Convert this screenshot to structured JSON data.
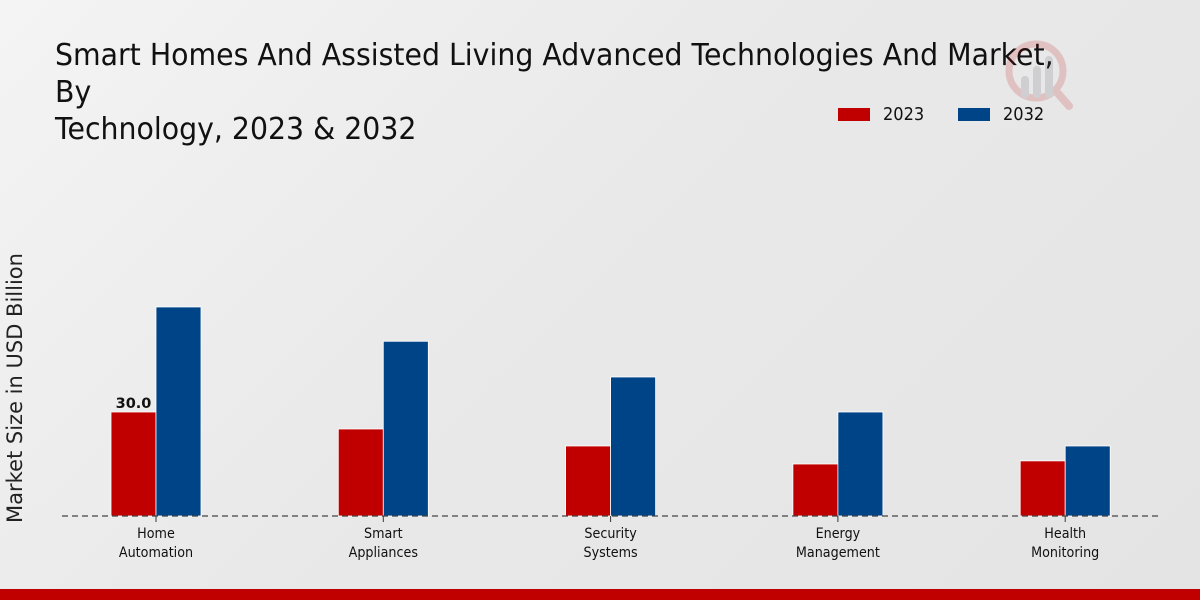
{
  "chart_data": {
    "type": "bar",
    "title": "Smart Homes And Assisted Living Advanced Technologies And Market, By Technology, 2023 & 2032",
    "title_lines": [
      "Smart Homes And Assisted Living Advanced Technologies And Market, By",
      "Technology, 2023 & 2032"
    ],
    "xlabel": "",
    "ylabel": "Market Size in USD Billion",
    "categories": [
      "Home Automation",
      "Smart Appliances",
      "Security Systems",
      "Energy Management",
      "Health Monitoring"
    ],
    "category_label_lines": [
      [
        "Home",
        "Automation"
      ],
      [
        "Smart",
        "Appliances"
      ],
      [
        "Security",
        "Systems"
      ],
      [
        "Energy",
        "Management"
      ],
      [
        "Health",
        "Monitoring"
      ]
    ],
    "series": [
      {
        "name": "2023",
        "color": "#c00000",
        "values": [
          30.0,
          25.1,
          20.2,
          15.0,
          15.9
        ]
      },
      {
        "name": "2032",
        "color": "#004488",
        "values": [
          60.3,
          50.4,
          40.1,
          30.0,
          20.2
        ]
      }
    ],
    "data_labels": [
      {
        "series": "2023",
        "category": "Home Automation",
        "text": "30.0"
      }
    ],
    "ylim": [
      0,
      70
    ],
    "grid": false,
    "baseline_style": "dashed",
    "legend": {
      "placement": "top-right",
      "entries": [
        "2023",
        "2032"
      ]
    }
  },
  "colors": {
    "accent_bar": "#c00000",
    "series_2023": "#c00000",
    "series_2032": "#004488"
  }
}
